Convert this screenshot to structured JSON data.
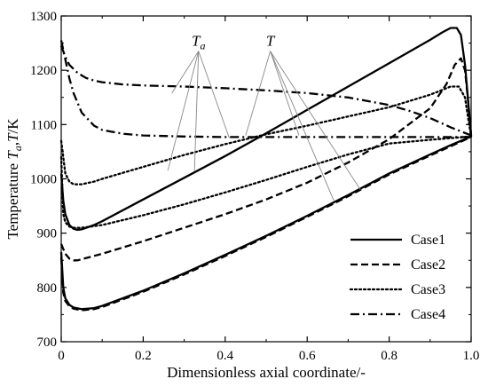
{
  "chart_data": {
    "type": "line",
    "title": "",
    "xlabel": "Dimensionless axial coordinate/-",
    "ylabel_parts": {
      "pre": "Temperature ",
      "sym1": "T",
      "sub": "a",
      "mid": ",",
      "sym2": "T",
      "post": "/K"
    },
    "xlim": [
      0,
      1.0
    ],
    "ylim": [
      700,
      1300
    ],
    "x_ticks": [
      0,
      0.2,
      0.4,
      0.6,
      0.8,
      1.0
    ],
    "x_tick_labels": [
      "0",
      "0.2",
      "0.4",
      "0.6",
      "0.8",
      "1.0"
    ],
    "y_ticks": [
      700,
      800,
      900,
      1000,
      1100,
      1200,
      1300
    ],
    "y_tick_labels": [
      "700",
      "800",
      "900",
      "1000",
      "1100",
      "1200",
      "1300"
    ],
    "grid": false,
    "legend_position": "bottom-right",
    "legend": [
      {
        "label": "Case1",
        "style": "solid"
      },
      {
        "label": "Case2",
        "style": "dashed"
      },
      {
        "label": "Case3",
        "style": "dotted"
      },
      {
        "label": "Case4",
        "style": "dashdot"
      }
    ],
    "annotations": [
      {
        "sym": "T",
        "sub": "a",
        "anchor": [
          0.335,
          1245
        ],
        "targets": [
          [
            0.26,
            1015
          ],
          [
            0.325,
            1015
          ],
          [
            0.27,
            1158
          ],
          [
            0.41,
            1075
          ]
        ]
      },
      {
        "sym": "T",
        "sub": "",
        "anchor": [
          0.51,
          1245
        ],
        "targets": [
          [
            0.45,
            1080
          ],
          [
            0.58,
            1080
          ],
          [
            0.665,
            960
          ],
          [
            0.73,
            980
          ]
        ]
      }
    ],
    "series": [
      {
        "case": "Case1",
        "style": "solid",
        "role": "upper",
        "x": [
          0,
          0.005,
          0.01,
          0.02,
          0.03,
          0.04,
          0.05,
          0.08,
          0.1,
          0.2,
          0.3,
          0.4,
          0.5,
          0.6,
          0.7,
          0.8,
          0.9,
          0.93,
          0.95,
          0.965,
          0.975,
          0.985,
          0.993,
          1.0
        ],
        "y": [
          1010,
          960,
          935,
          915,
          908,
          906,
          907,
          915,
          922,
          962,
          1002,
          1042,
          1084,
          1127,
          1170,
          1213,
          1256,
          1270,
          1278,
          1278,
          1265,
          1210,
          1140,
          1080
        ]
      },
      {
        "case": "Case1",
        "style": "solid",
        "role": "lower",
        "x": [
          0,
          0.005,
          0.01,
          0.02,
          0.03,
          0.05,
          0.08,
          0.1,
          0.2,
          0.3,
          0.4,
          0.5,
          0.6,
          0.7,
          0.8,
          0.9,
          0.95,
          1.0
        ],
        "y": [
          865,
          800,
          780,
          768,
          763,
          760,
          762,
          766,
          794,
          826,
          860,
          895,
          932,
          970,
          1010,
          1045,
          1062,
          1078
        ]
      },
      {
        "case": "Case2",
        "style": "dashed",
        "role": "upper",
        "x": [
          0,
          0.01,
          0.02,
          0.03,
          0.04,
          0.05,
          0.1,
          0.2,
          0.3,
          0.4,
          0.5,
          0.6,
          0.7,
          0.8,
          0.9,
          0.94,
          0.96,
          0.975,
          0.985,
          0.993,
          1.0
        ],
        "y": [
          880,
          862,
          853,
          850,
          850,
          852,
          862,
          885,
          910,
          935,
          962,
          993,
          1030,
          1073,
          1130,
          1175,
          1210,
          1222,
          1200,
          1140,
          1080
        ]
      },
      {
        "case": "Case2",
        "style": "dashed",
        "role": "lower",
        "x": [
          0,
          0.005,
          0.01,
          0.02,
          0.03,
          0.05,
          0.08,
          0.1,
          0.2,
          0.3,
          0.4,
          0.5,
          0.6,
          0.7,
          0.8,
          0.9,
          0.95,
          1.0
        ],
        "y": [
          855,
          790,
          775,
          765,
          761,
          758,
          760,
          764,
          792,
          824,
          858,
          893,
          930,
          968,
          1008,
          1043,
          1060,
          1077
        ]
      },
      {
        "case": "Case3",
        "style": "dotted",
        "role": "upper",
        "x": [
          0,
          0.01,
          0.02,
          0.03,
          0.05,
          0.08,
          0.1,
          0.2,
          0.3,
          0.4,
          0.5,
          0.6,
          0.7,
          0.8,
          0.9,
          0.95,
          0.97,
          0.985,
          0.993,
          1.0
        ],
        "y": [
          1070,
          1010,
          995,
          990,
          990,
          995,
          1000,
          1022,
          1044,
          1064,
          1082,
          1098,
          1115,
          1132,
          1155,
          1170,
          1170,
          1150,
          1110,
          1078
        ]
      },
      {
        "case": "Case3",
        "style": "dotted",
        "role": "lower",
        "x": [
          0,
          0.005,
          0.01,
          0.02,
          0.03,
          0.05,
          0.1,
          0.2,
          0.3,
          0.4,
          0.5,
          0.6,
          0.7,
          0.8,
          0.9,
          0.95,
          1.0
        ],
        "y": [
          1040,
          935,
          920,
          912,
          910,
          910,
          915,
          933,
          953,
          975,
          998,
          1022,
          1045,
          1065,
          1072,
          1075,
          1078
        ]
      },
      {
        "case": "Case4",
        "style": "dashdot",
        "role": "upper",
        "x": [
          0,
          0.01,
          0.02,
          0.04,
          0.06,
          0.08,
          0.1,
          0.15,
          0.2,
          0.3,
          0.4,
          0.5,
          0.6,
          0.7,
          0.8,
          0.85,
          0.9,
          0.95,
          1.0
        ],
        "y": [
          1245,
          1225,
          1210,
          1195,
          1186,
          1181,
          1178,
          1174,
          1172,
          1170,
          1167,
          1163,
          1158,
          1150,
          1136,
          1125,
          1112,
          1095,
          1080
        ]
      },
      {
        "case": "Case4",
        "style": "dashdot",
        "role": "lower",
        "x": [
          0,
          0.01,
          0.02,
          0.03,
          0.05,
          0.08,
          0.1,
          0.15,
          0.2,
          0.3,
          0.4,
          0.5,
          0.6,
          0.7,
          0.8,
          0.9,
          1.0
        ],
        "y": [
          1255,
          1220,
          1185,
          1158,
          1122,
          1098,
          1090,
          1083,
          1080,
          1078,
          1077,
          1077,
          1077,
          1077,
          1077,
          1077,
          1077
        ]
      }
    ]
  }
}
